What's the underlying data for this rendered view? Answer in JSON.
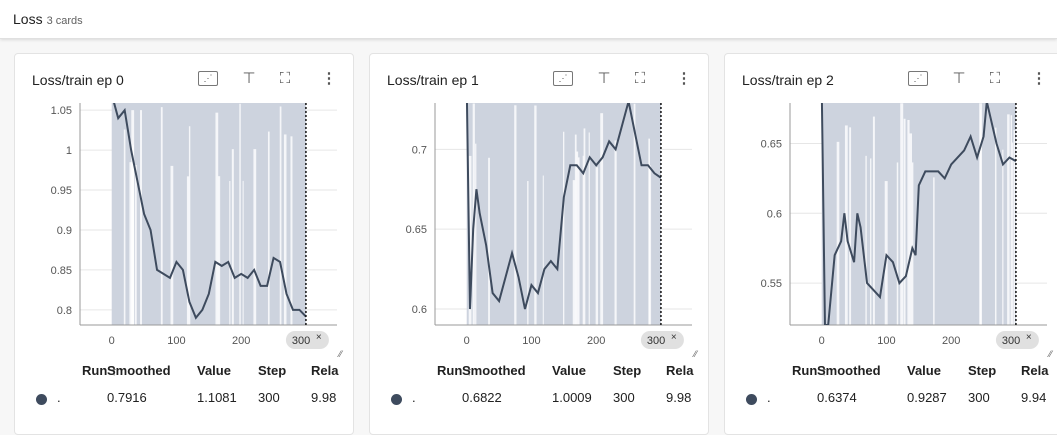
{
  "header": {
    "title": "Loss",
    "count": "3 cards"
  },
  "colors": {
    "smoothed": "#3e4b5e",
    "raw": "#cdd3de",
    "grid": "#e6e6e6"
  },
  "icons": [
    "fit-domain-icon",
    "pin-icon",
    "fullscreen-icon",
    "more-vert-icon"
  ],
  "table_headers": {
    "run": "Run ↑",
    "smoothed": "Smoothed",
    "value": "Value",
    "step": "Step",
    "relative": "Rela"
  },
  "cards": [
    {
      "title": "Loss/train ep 0",
      "row": {
        "run": ".",
        "smoothed": "0.7916",
        "value": "1.1081",
        "step": "300",
        "relative": "9.98"
      },
      "cursor_label": "300"
    },
    {
      "title": "Loss/train ep 1",
      "row": {
        "run": ".",
        "smoothed": "0.6822",
        "value": "1.0009",
        "step": "300",
        "relative": "9.98"
      },
      "cursor_label": "300"
    },
    {
      "title": "Loss/train ep 2",
      "row": {
        "run": ".",
        "smoothed": "0.6374",
        "value": "0.9287",
        "step": "300",
        "relative": "9.94"
      },
      "cursor_label": "300"
    }
  ],
  "chart_data": [
    {
      "type": "line",
      "xlim": [
        -49,
        348
      ],
      "ylim": [
        0.781,
        1.059
      ],
      "xticks": [
        0,
        100,
        200
      ],
      "yticks": [
        0.8,
        0.85,
        0.9,
        0.95,
        1,
        1.05
      ],
      "grid": true,
      "x": [
        0,
        10,
        20,
        30,
        40,
        50,
        60,
        70,
        80,
        90,
        100,
        110,
        120,
        130,
        140,
        150,
        160,
        170,
        180,
        190,
        200,
        210,
        220,
        230,
        240,
        250,
        260,
        270,
        280,
        290,
        300
      ],
      "smoothed": [
        1.07,
        1.04,
        1.05,
        1.0,
        0.96,
        0.92,
        0.9,
        0.85,
        0.845,
        0.84,
        0.86,
        0.85,
        0.81,
        0.79,
        0.8,
        0.82,
        0.86,
        0.855,
        0.86,
        0.84,
        0.845,
        0.84,
        0.85,
        0.83,
        0.83,
        0.865,
        0.86,
        0.82,
        0.8,
        0.8,
        0.7916
      ]
    },
    {
      "type": "line",
      "xlim": [
        -49,
        348
      ],
      "ylim": [
        0.59,
        0.729
      ],
      "xticks": [
        0,
        100,
        200
      ],
      "yticks": [
        0.6,
        0.65,
        0.7
      ],
      "grid": true,
      "x": [
        0,
        5,
        10,
        15,
        20,
        30,
        40,
        50,
        60,
        70,
        80,
        90,
        100,
        110,
        120,
        130,
        140,
        150,
        160,
        170,
        180,
        190,
        200,
        210,
        220,
        230,
        240,
        250,
        260,
        270,
        280,
        290,
        300
      ],
      "smoothed": [
        0.74,
        0.6,
        0.65,
        0.675,
        0.66,
        0.64,
        0.61,
        0.605,
        0.62,
        0.635,
        0.62,
        0.6,
        0.615,
        0.61,
        0.625,
        0.63,
        0.625,
        0.67,
        0.69,
        0.69,
        0.685,
        0.695,
        0.69,
        0.695,
        0.705,
        0.7,
        0.715,
        0.73,
        0.71,
        0.69,
        0.69,
        0.685,
        0.6822
      ]
    },
    {
      "type": "line",
      "xlim": [
        -49,
        348
      ],
      "ylim": [
        0.52,
        0.679
      ],
      "xticks": [
        0,
        100,
        200
      ],
      "yticks": [
        0.55,
        0.6,
        0.65
      ],
      "grid": true,
      "x": [
        0,
        5,
        10,
        20,
        30,
        35,
        40,
        50,
        55,
        60,
        70,
        80,
        90,
        100,
        110,
        120,
        130,
        140,
        145,
        150,
        160,
        170,
        180,
        190,
        200,
        210,
        220,
        230,
        240,
        250,
        255,
        260,
        270,
        280,
        290,
        300
      ],
      "smoothed": [
        0.69,
        0.52,
        0.52,
        0.57,
        0.58,
        0.6,
        0.58,
        0.565,
        0.6,
        0.59,
        0.55,
        0.545,
        0.54,
        0.57,
        0.565,
        0.55,
        0.555,
        0.575,
        0.57,
        0.62,
        0.63,
        0.63,
        0.63,
        0.625,
        0.635,
        0.64,
        0.645,
        0.655,
        0.64,
        0.655,
        0.68,
        0.67,
        0.65,
        0.635,
        0.64,
        0.6374
      ]
    }
  ]
}
